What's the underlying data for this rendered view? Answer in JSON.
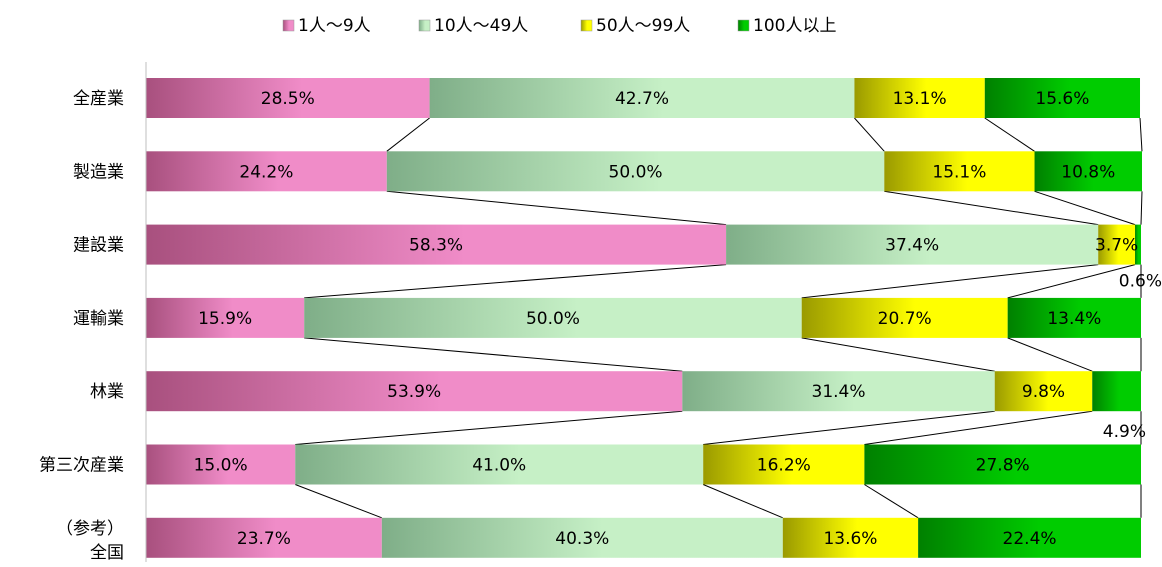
{
  "chart_data": {
    "type": "bar",
    "stacked": "percent",
    "orientation": "horizontal",
    "categories": [
      [
        "全産業"
      ],
      [
        "製造業"
      ],
      [
        "建設業"
      ],
      [
        "運輸業"
      ],
      [
        "林業"
      ],
      [
        "第三次産業"
      ],
      [
        "（参考）",
        "全国"
      ]
    ],
    "series": [
      {
        "name": "1人～9人",
        "color": "#f08cc8",
        "values": [
          28.5,
          24.2,
          58.3,
          15.9,
          53.9,
          15.0,
          23.7
        ],
        "labels": [
          "28.5%",
          "24.2%",
          "58.3%",
          "15.9%",
          "53.9%",
          "15.0%",
          "23.7%"
        ]
      },
      {
        "name": "10人～49人",
        "color": "#c6f0c6",
        "values": [
          42.7,
          50.0,
          37.4,
          50.0,
          31.4,
          41.0,
          40.3
        ],
        "labels": [
          "42.7%",
          "50.0%",
          "37.4%",
          "50.0%",
          "31.4%",
          "41.0%",
          "40.3%"
        ]
      },
      {
        "name": "50人～99人",
        "color": "#ffff00",
        "values": [
          13.1,
          15.1,
          3.7,
          20.7,
          9.8,
          16.2,
          13.6
        ],
        "labels": [
          "13.1%",
          "15.1%",
          "3.7%",
          "20.7%",
          "9.8%",
          "16.2%",
          "13.6%"
        ]
      },
      {
        "name": "100人以上",
        "color": "#00cc00",
        "values": [
          15.6,
          10.8,
          0.6,
          13.4,
          4.9,
          27.8,
          22.4
        ],
        "labels": [
          "15.6%",
          "10.8%",
          "0.6%",
          "13.4%",
          "4.9%",
          "27.8%",
          "22.4%"
        ]
      }
    ],
    "xlim": [
      0,
      100
    ],
    "series_lines": true,
    "legend_position": "top"
  }
}
